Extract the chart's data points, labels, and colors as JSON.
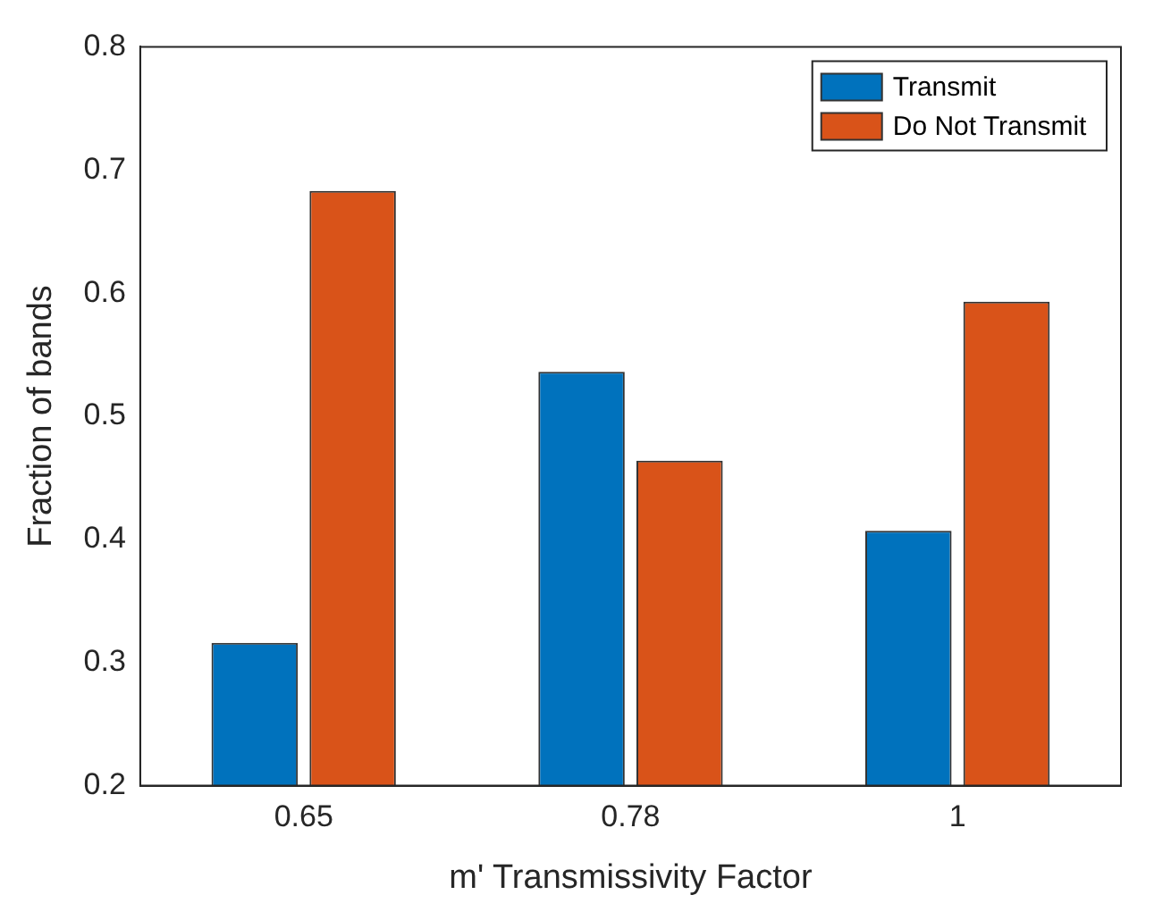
{
  "chart_data": {
    "type": "bar",
    "xlabel": "m' Transmissivity Factor",
    "ylabel": "Fraction of bands",
    "categories": [
      "0.65",
      "0.78",
      "1"
    ],
    "series": [
      {
        "name": "Transmit",
        "color": "#0072bd",
        "values": [
          0.316,
          0.536,
          0.407
        ]
      },
      {
        "name": "Do Not Transmit",
        "color": "#d95319",
        "values": [
          0.683,
          0.464,
          0.593
        ]
      }
    ],
    "ylim": [
      0.2,
      0.8
    ],
    "yticks": [
      0.2,
      0.3,
      0.4,
      0.5,
      0.6,
      0.7,
      0.8
    ],
    "grid": false,
    "legend": "top right"
  }
}
